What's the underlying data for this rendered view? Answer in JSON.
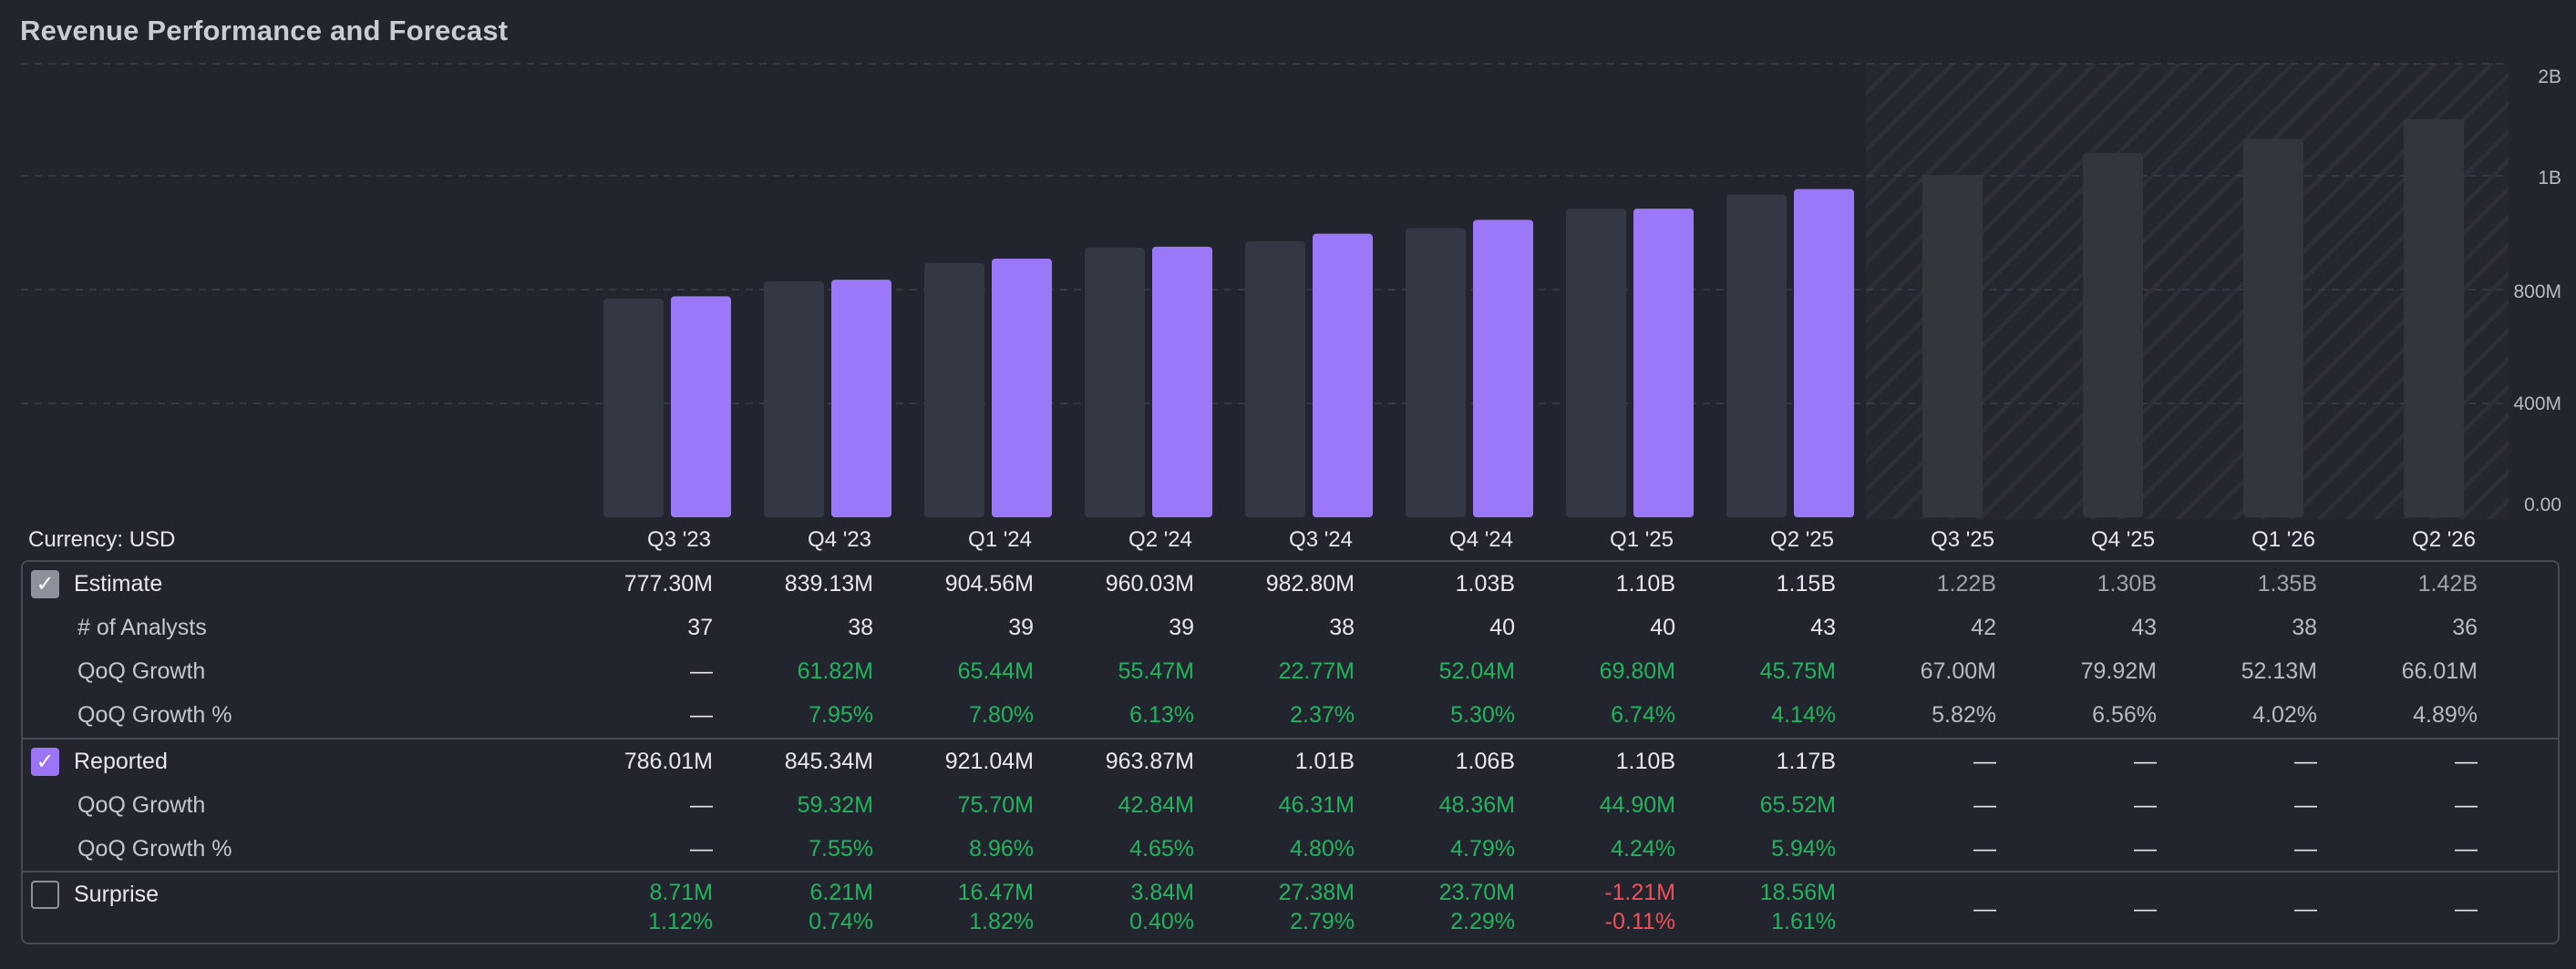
{
  "title": "Revenue Performance and Forecast",
  "currency_label": "Currency: USD",
  "colors": {
    "estimate_bar": "#343744",
    "reported_bar": "#9b78f7",
    "forecast_bar": "#34363e",
    "positive": "#22b35e",
    "negative": "#f0505a"
  },
  "chart_data": {
    "type": "bar",
    "title": "Revenue Performance and Forecast",
    "categories": [
      "Q3 '23",
      "Q4 '23",
      "Q1 '24",
      "Q2 '24",
      "Q3 '24",
      "Q4 '24",
      "Q1 '25",
      "Q2 '25",
      "Q3 '25",
      "Q4 '25",
      "Q1 '26",
      "Q2 '26"
    ],
    "y_ticks": [
      "2B",
      "1B",
      "800M",
      "400M",
      "0.00"
    ],
    "series": [
      {
        "name": "Estimate",
        "values": [
          777.3,
          839.13,
          904.56,
          960.03,
          982.8,
          1030,
          1100,
          1150,
          1220,
          1300,
          1350,
          1420
        ]
      },
      {
        "name": "Reported",
        "values": [
          786.01,
          845.34,
          921.04,
          963.87,
          1010,
          1060,
          1100,
          1170,
          null,
          null,
          null,
          null
        ]
      }
    ],
    "units": "millions USD",
    "forecast_start_index": 8
  },
  "table": {
    "estimate": {
      "label": "Estimate",
      "values": [
        "777.30M",
        "839.13M",
        "904.56M",
        "960.03M",
        "982.80M",
        "1.03B",
        "1.10B",
        "1.15B",
        "1.22B",
        "1.30B",
        "1.35B",
        "1.42B"
      ]
    },
    "analysts": {
      "label": "# of Analysts",
      "values": [
        "37",
        "38",
        "39",
        "39",
        "38",
        "40",
        "40",
        "43",
        "42",
        "43",
        "38",
        "36"
      ]
    },
    "est_qoq": {
      "label": "QoQ Growth",
      "values": [
        "—",
        "61.82M",
        "65.44M",
        "55.47M",
        "22.77M",
        "52.04M",
        "69.80M",
        "45.75M",
        "67.00M",
        "79.92M",
        "52.13M",
        "66.01M"
      ]
    },
    "est_qoq_pct": {
      "label": "QoQ Growth %",
      "values": [
        "—",
        "7.95%",
        "7.80%",
        "6.13%",
        "2.37%",
        "5.30%",
        "6.74%",
        "4.14%",
        "5.82%",
        "6.56%",
        "4.02%",
        "4.89%"
      ]
    },
    "reported": {
      "label": "Reported",
      "values": [
        "786.01M",
        "845.34M",
        "921.04M",
        "963.87M",
        "1.01B",
        "1.06B",
        "1.10B",
        "1.17B",
        "—",
        "—",
        "—",
        "—"
      ]
    },
    "rep_qoq": {
      "label": "QoQ Growth",
      "values": [
        "—",
        "59.32M",
        "75.70M",
        "42.84M",
        "46.31M",
        "48.36M",
        "44.90M",
        "65.52M",
        "—",
        "—",
        "—",
        "—"
      ]
    },
    "rep_qoq_pct": {
      "label": "QoQ Growth %",
      "values": [
        "—",
        "7.55%",
        "8.96%",
        "4.65%",
        "4.80%",
        "4.79%",
        "4.24%",
        "5.94%",
        "—",
        "—",
        "—",
        "—"
      ]
    },
    "surprise": {
      "label": "Surprise",
      "amount": [
        "8.71M",
        "6.21M",
        "16.47M",
        "3.84M",
        "27.38M",
        "23.70M",
        "-1.21M",
        "18.56M",
        "—",
        "—",
        "—",
        "—"
      ],
      "percent": [
        "1.12%",
        "0.74%",
        "1.82%",
        "0.40%",
        "2.79%",
        "2.29%",
        "-0.11%",
        "1.61%",
        "",
        "",
        "",
        ""
      ]
    }
  }
}
